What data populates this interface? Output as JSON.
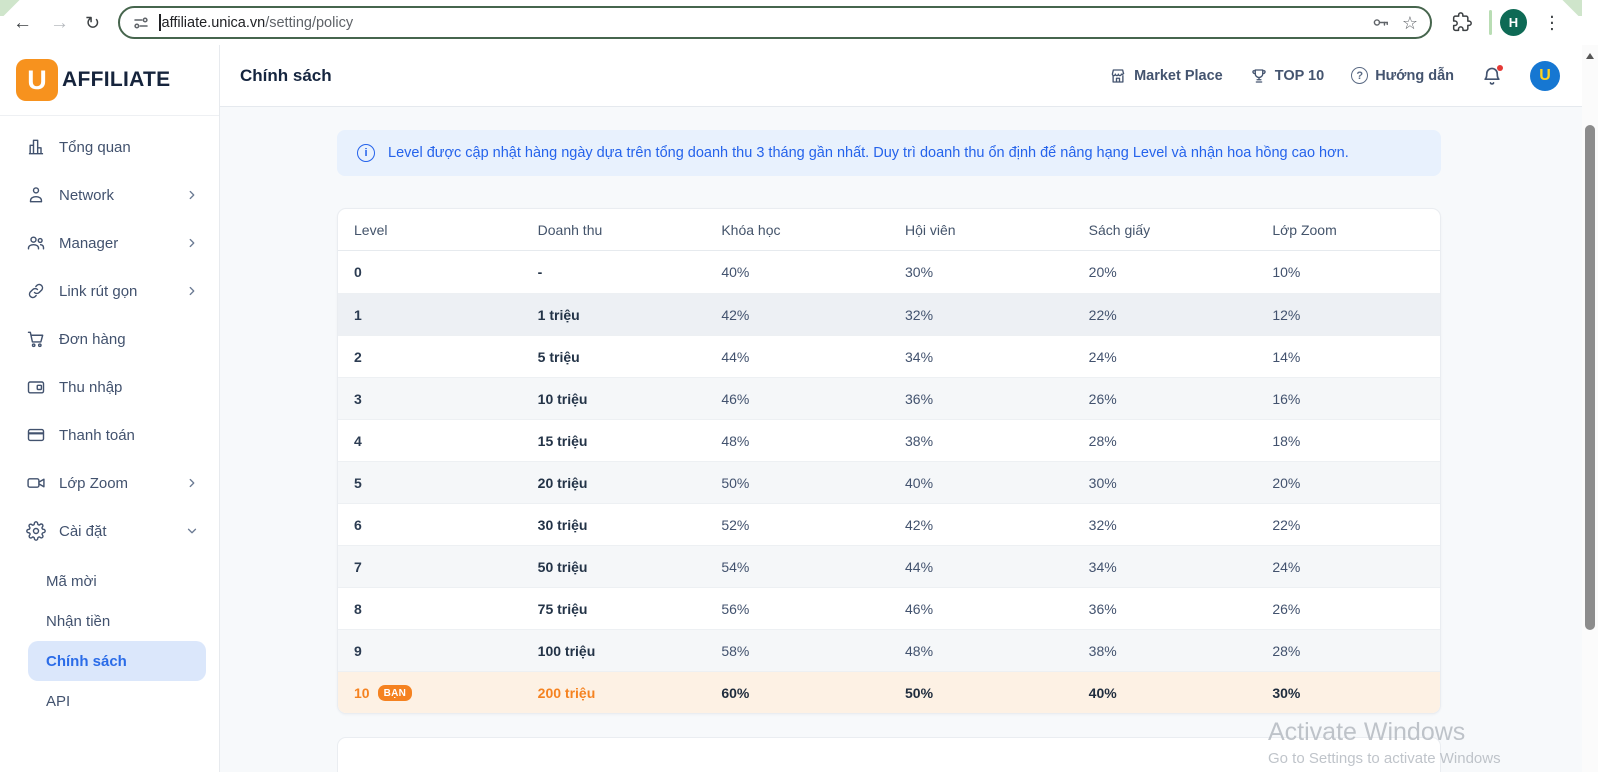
{
  "browser": {
    "url_domain": "affiliate.unica.vn",
    "url_path": "/setting/policy",
    "profile_initial": "H"
  },
  "sidebar": {
    "logo_initial": "U",
    "logo_text": "AFFILIATE",
    "items": [
      {
        "label": "Tổng quan"
      },
      {
        "label": "Network"
      },
      {
        "label": "Manager"
      },
      {
        "label": "Link rút gọn"
      },
      {
        "label": "Đơn hàng"
      },
      {
        "label": "Thu nhập"
      },
      {
        "label": "Thanh toán"
      },
      {
        "label": "Lớp Zoom"
      },
      {
        "label": "Cài đặt"
      }
    ],
    "sub_items": [
      {
        "label": "Mã mời"
      },
      {
        "label": "Nhận tiền"
      },
      {
        "label": "Chính sách",
        "active": true
      },
      {
        "label": "API"
      }
    ]
  },
  "header": {
    "title": "Chính sách",
    "marketplace_label": "Market Place",
    "top10_label": "TOP 10",
    "guide_label": "Hướng dẫn",
    "avatar_initial": "U"
  },
  "banner": {
    "text": "Level được cập nhật hàng ngày dựa trên tổng doanh thu 3 tháng gần nhất. Duy trì doanh thu ổn định để nâng hạng Level và nhận hoa hồng cao hơn."
  },
  "table": {
    "columns": [
      "Level",
      "Doanh thu",
      "Khóa học",
      "Hội viên",
      "Sách giấy",
      "Lớp Zoom"
    ],
    "rows": [
      {
        "level": "0",
        "revenue": "-",
        "percents": [
          "40%",
          "30%",
          "20%",
          "10%"
        ]
      },
      {
        "level": "1",
        "revenue": "1 triệu",
        "percents": [
          "42%",
          "32%",
          "22%",
          "12%"
        ]
      },
      {
        "level": "2",
        "revenue": "5 triệu",
        "percents": [
          "44%",
          "34%",
          "24%",
          "14%"
        ]
      },
      {
        "level": "3",
        "revenue": "10 triệu",
        "percents": [
          "46%",
          "36%",
          "26%",
          "16%"
        ]
      },
      {
        "level": "4",
        "revenue": "15 triệu",
        "percents": [
          "48%",
          "38%",
          "28%",
          "18%"
        ]
      },
      {
        "level": "5",
        "revenue": "20 triệu",
        "percents": [
          "50%",
          "40%",
          "30%",
          "20%"
        ]
      },
      {
        "level": "6",
        "revenue": "30 triệu",
        "percents": [
          "52%",
          "42%",
          "32%",
          "22%"
        ]
      },
      {
        "level": "7",
        "revenue": "50 triệu",
        "percents": [
          "54%",
          "44%",
          "34%",
          "24%"
        ]
      },
      {
        "level": "8",
        "revenue": "75 triệu",
        "percents": [
          "56%",
          "46%",
          "36%",
          "26%"
        ]
      },
      {
        "level": "9",
        "revenue": "100 triệu",
        "percents": [
          "58%",
          "48%",
          "38%",
          "28%"
        ]
      },
      {
        "level": "10",
        "badge": "BẠN",
        "revenue": "200 triệu",
        "percents": [
          "60%",
          "50%",
          "40%",
          "30%"
        ],
        "highlight": true
      }
    ]
  },
  "watermark": {
    "line1": "Activate Windows",
    "line2": "Go to Settings to activate Windows"
  },
  "colors": {
    "accent_orange": "#f58220",
    "accent_blue": "#2563eb",
    "active_item_bg": "#dbe7fb",
    "highlight_row_bg": "#fdf1e4"
  }
}
